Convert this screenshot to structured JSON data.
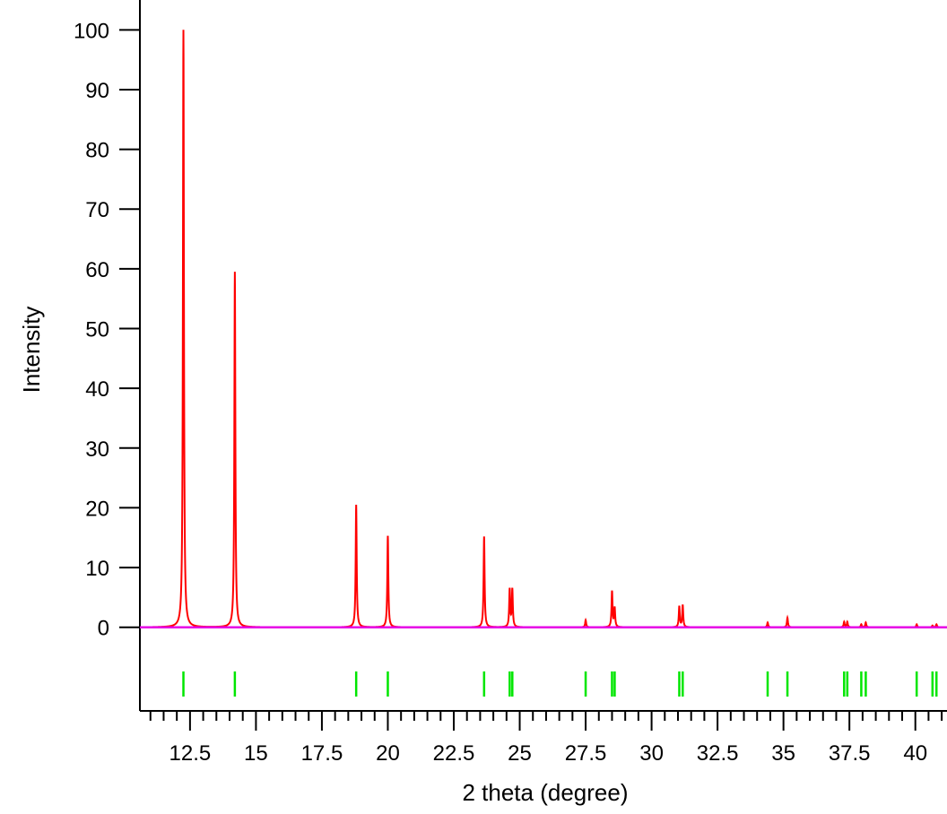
{
  "chart_data": {
    "type": "line",
    "xlabel": "2 theta (degree)",
    "ylabel": "Intensity",
    "xlim": [
      10.6,
      41.2
    ],
    "ylim": [
      -14.0,
      105.0
    ],
    "x_ticks": [
      12.5,
      15,
      17.5,
      20,
      22.5,
      25,
      27.5,
      30,
      32.5,
      35,
      37.5,
      40
    ],
    "x_tick_labels": [
      "12.5",
      "15",
      "17.5",
      "20",
      "22.5",
      "25",
      "27.5",
      "30",
      "32.5",
      "35",
      "37.5",
      "40"
    ],
    "y_ticks": [
      0,
      10,
      20,
      30,
      40,
      50,
      60,
      70,
      80,
      90,
      100
    ],
    "y_tick_labels": [
      "0",
      "10",
      "20",
      "30",
      "40",
      "50",
      "60",
      "70",
      "80",
      "90",
      "100"
    ],
    "colors": {
      "pattern": "#ff0000",
      "baseline": "#e600e6",
      "reflections": "#00e600"
    },
    "peaks": [
      {
        "x": 12.25,
        "y": 100
      },
      {
        "x": 14.2,
        "y": 59.5
      },
      {
        "x": 18.8,
        "y": 20.5
      },
      {
        "x": 20.0,
        "y": 15.3
      },
      {
        "x": 23.65,
        "y": 15.2
      },
      {
        "x": 24.62,
        "y": 6.3
      },
      {
        "x": 24.72,
        "y": 6.3
      },
      {
        "x": 27.5,
        "y": 1.2
      },
      {
        "x": 28.5,
        "y": 6.0
      },
      {
        "x": 28.6,
        "y": 3.2
      },
      {
        "x": 31.05,
        "y": 3.5
      },
      {
        "x": 31.18,
        "y": 3.7
      },
      {
        "x": 34.4,
        "y": 0.8
      },
      {
        "x": 35.15,
        "y": 1.6
      },
      {
        "x": 37.3,
        "y": 0.9
      },
      {
        "x": 37.42,
        "y": 0.9
      },
      {
        "x": 37.95,
        "y": 0.5
      },
      {
        "x": 38.12,
        "y": 0.8
      },
      {
        "x": 40.05,
        "y": 0.5
      },
      {
        "x": 40.65,
        "y": 0.3
      },
      {
        "x": 40.8,
        "y": 0.5
      }
    ],
    "reflection_positions": [
      12.25,
      14.2,
      18.8,
      20.0,
      23.65,
      24.62,
      24.72,
      27.5,
      28.5,
      28.6,
      31.05,
      31.18,
      34.4,
      35.15,
      37.3,
      37.42,
      37.95,
      38.12,
      40.05,
      40.65,
      40.8
    ]
  }
}
